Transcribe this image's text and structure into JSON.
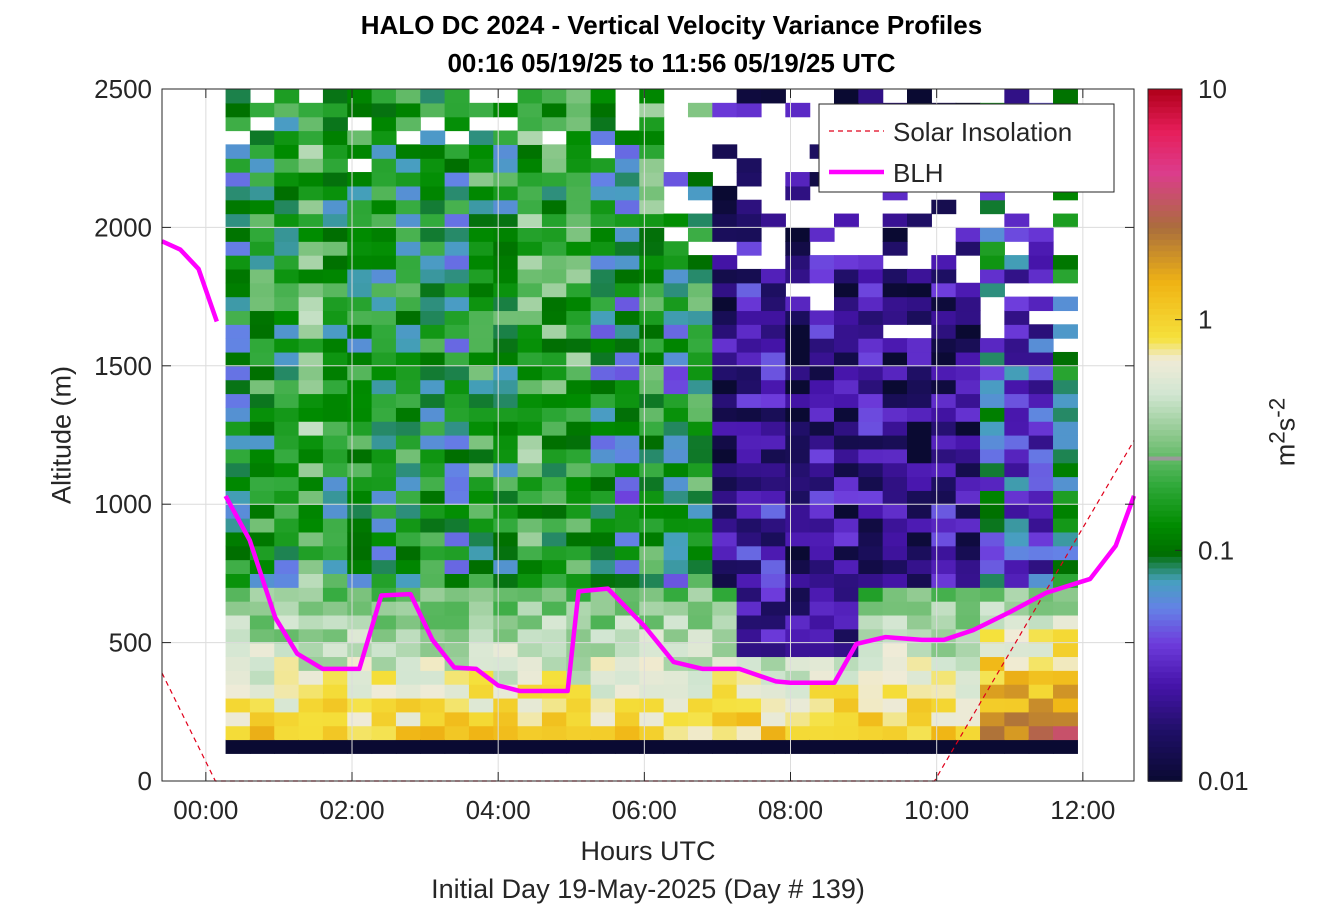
{
  "chart_data": {
    "type": "heatmap",
    "title": "HALO DC 2024 - Vertical Velocity Variance Profiles",
    "subtitle": "00:16 05/19/25 to 11:56 05/19/25  UTC",
    "xlabel": "Hours UTC",
    "xlabel2": "Initial Day 19-May-2025 (Day # 139)",
    "ylabel": "Altitude (m)",
    "colorbar_label": "m²s⁻²",
    "colorbar_scale": "log",
    "colorbar_range": [
      0.01,
      10
    ],
    "colorbar_ticks": [
      "0.01",
      "0.1",
      "1",
      "10"
    ],
    "xlim": [
      -0.6,
      12.7
    ],
    "ylim": [
      0,
      2500
    ],
    "x_ticks": [
      0,
      2,
      4,
      6,
      8,
      10,
      12
    ],
    "x_tick_labels": [
      "00:00",
      "02:00",
      "04:00",
      "06:00",
      "08:00",
      "10:00",
      "12:00"
    ],
    "y_ticks": [
      0,
      500,
      1000,
      1500,
      2000,
      2500
    ],
    "y_tick_labels": [
      "0",
      "500",
      "1000",
      "1500",
      "2000",
      "2500"
    ],
    "grid": true,
    "legend_position": "top-right",
    "series": [
      {
        "name": "Solar Insolation",
        "style": "dashed",
        "color": "#e0001b",
        "x": [
          -0.6,
          0.13,
          9.97,
          12.7
        ],
        "y": [
          390,
          0,
          0,
          1230
        ]
      },
      {
        "name": "BLH",
        "style": "solid",
        "color": "#ff00ff",
        "segments": [
          {
            "x": [
              -0.6,
              -0.35,
              -0.1,
              0.15
            ],
            "y": [
              1950,
              1920,
              1850,
              1660
            ]
          },
          {
            "x": [
              0.27,
              0.6,
              0.95,
              1.25,
              1.6,
              1.95,
              2.1,
              2.4,
              2.8,
              3.1,
              3.4,
              3.7,
              4.0,
              4.3,
              4.6,
              4.95,
              5.1,
              5.5,
              6.0,
              6.4,
              6.8,
              7.3,
              7.8,
              8.0,
              8.3,
              8.6,
              8.9,
              9.3,
              9.8,
              10.1,
              10.5,
              11.0,
              11.5,
              12.1,
              12.45,
              12.7
            ]
          }
        ]
      }
    ],
    "heatmap": {
      "x_start": 0.27,
      "x_end": 12.0,
      "dx": 0.333,
      "y_start": 100,
      "y_end": 2500,
      "dy": 50,
      "missing_above": "white",
      "bottom_row_value": 0.01
    }
  },
  "legend": {
    "solar_label": "Solar Insolation",
    "blh_label": "BLH"
  }
}
